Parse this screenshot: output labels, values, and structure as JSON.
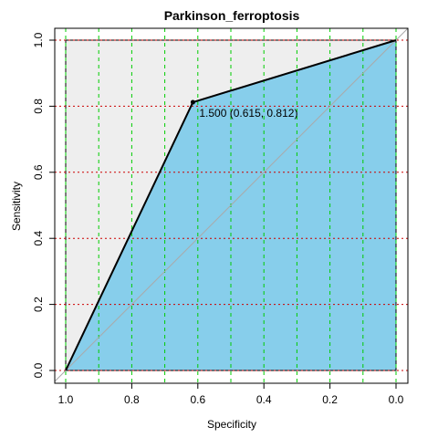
{
  "chart_data": {
    "type": "line",
    "title": "Parkinson_ferroptosis",
    "xlabel": "Specificity",
    "ylabel": "Sensitivity",
    "x_reversed": true,
    "xlim": [
      1.0,
      0.0
    ],
    "ylim": [
      0.0,
      1.0
    ],
    "x_ticks": [
      1.0,
      0.8,
      0.6,
      0.4,
      0.2,
      0.0
    ],
    "x_tick_labels": [
      "1.0",
      "0.8",
      "0.6",
      "0.4",
      "0.2",
      "0.0"
    ],
    "y_ticks": [
      0.0,
      0.2,
      0.4,
      0.6,
      0.8,
      1.0
    ],
    "y_tick_labels": [
      "0.0",
      "0.2",
      "0.4",
      "0.6",
      "0.8",
      "1.0"
    ],
    "series": [
      {
        "specificity": [
          1.0,
          0.615,
          0.0
        ],
        "sensitivity": [
          0.0,
          0.812,
          1.0
        ]
      }
    ],
    "threshold_point": {
      "specificity": 0.615,
      "sensitivity": 0.812,
      "label": "1.500 (0.615, 0.812)"
    },
    "vertical_grid_specificity": [
      1.0,
      0.9,
      0.8,
      0.7,
      0.6,
      0.5,
      0.4,
      0.3,
      0.2,
      0.1,
      0.0
    ],
    "horizontal_grid_sensitivity": [
      0.0,
      0.2,
      0.4,
      0.6,
      0.8,
      1.0
    ],
    "colors": {
      "auc_fill": "#87ceeb",
      "max_auc_fill": "#eeeeee",
      "vertical_grid": "#00cc00",
      "horizontal_grid": "#cc0000",
      "roc_line": "#000000",
      "diagonal": "#aaaaaa"
    }
  }
}
